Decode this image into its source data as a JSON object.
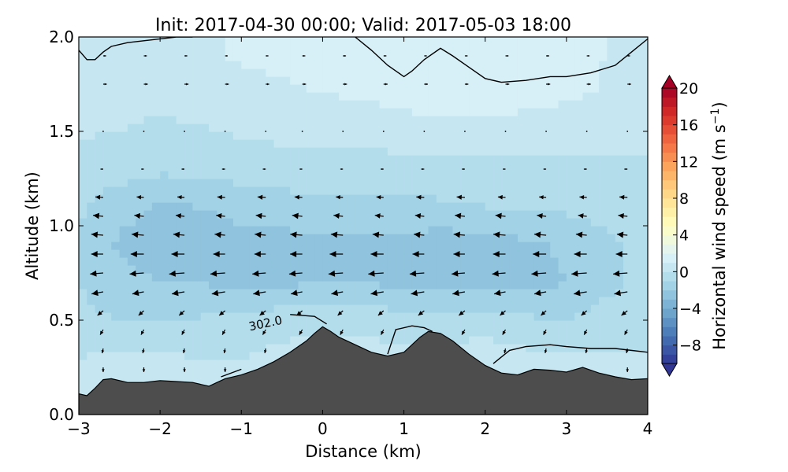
{
  "chart_data": {
    "type": "contour",
    "title": "Init: 2017-04-30 00:00; Valid: 2017-05-03 18:00",
    "xlabel": "Distance (km)",
    "ylabel": "Altitude (km)",
    "xlim": [
      -3,
      4
    ],
    "ylim": [
      0.0,
      2.0
    ],
    "x_ticks": [
      -3,
      -2,
      -1,
      0,
      1,
      2,
      3,
      4
    ],
    "x_tick_labels": [
      "−3",
      "−2",
      "−1",
      "0",
      "1",
      "2",
      "3",
      "4"
    ],
    "y_ticks": [
      0.0,
      0.5,
      1.0,
      1.5,
      2.0
    ],
    "y_tick_labels": [
      "0.0",
      "0.5",
      "1.0",
      "1.5",
      "2.0"
    ],
    "colorbar": {
      "label_main": "Horizontal wind speed (m s",
      "label_sup": "−1",
      "label_end": ")",
      "range": [
        -10,
        20
      ],
      "ticks": [
        -8,
        -4,
        0,
        4,
        8,
        12,
        16,
        20
      ],
      "tick_labels": [
        "−8",
        "−4",
        "0",
        "4",
        "8",
        "12",
        "16",
        "20"
      ],
      "colormap": "RdYlBu_r"
    },
    "terrain": {
      "x": [
        -3.0,
        -2.9,
        -2.8,
        -2.7,
        -2.6,
        -2.4,
        -2.2,
        -2.0,
        -1.8,
        -1.6,
        -1.4,
        -1.3,
        -1.2,
        -1.0,
        -0.8,
        -0.6,
        -0.4,
        -0.2,
        -0.1,
        0.0,
        0.1,
        0.2,
        0.4,
        0.6,
        0.8,
        1.0,
        1.1,
        1.2,
        1.3,
        1.45,
        1.6,
        1.8,
        2.0,
        2.2,
        2.4,
        2.6,
        2.8,
        3.0,
        3.2,
        3.4,
        3.6,
        3.8,
        4.0
      ],
      "altitude": [
        0.11,
        0.1,
        0.14,
        0.185,
        0.19,
        0.17,
        0.17,
        0.18,
        0.175,
        0.17,
        0.15,
        0.17,
        0.19,
        0.21,
        0.24,
        0.28,
        0.33,
        0.39,
        0.43,
        0.465,
        0.44,
        0.41,
        0.37,
        0.33,
        0.31,
        0.33,
        0.37,
        0.41,
        0.44,
        0.43,
        0.39,
        0.32,
        0.26,
        0.22,
        0.21,
        0.24,
        0.235,
        0.225,
        0.25,
        0.22,
        0.2,
        0.185,
        0.19
      ]
    },
    "contour_label": "302.0",
    "isentropes": [
      {
        "x": [
          -1.25,
          -1.0
        ],
        "y": [
          0.2,
          0.24
        ]
      },
      {
        "x": [
          -0.4,
          -0.1,
          0.05
        ],
        "y": [
          0.53,
          0.52,
          0.48
        ]
      },
      {
        "x": [
          0.8,
          0.9,
          1.1,
          1.25,
          1.35
        ],
        "y": [
          0.32,
          0.45,
          0.47,
          0.46,
          0.44
        ]
      },
      {
        "x": [
          2.1,
          2.3,
          2.5,
          2.8,
          3.0,
          3.3,
          3.6,
          4.0
        ],
        "y": [
          0.27,
          0.34,
          0.36,
          0.37,
          0.36,
          0.35,
          0.35,
          0.33
        ]
      },
      {
        "x": [
          -3.0,
          -2.9,
          -2.8,
          -2.7,
          -2.6,
          -2.4,
          -2.2,
          -2.0,
          -1.8,
          -1.6
        ],
        "y": [
          1.93,
          1.88,
          1.88,
          1.92,
          1.95,
          1.97,
          1.98,
          1.99,
          2.0,
          2.0
        ]
      },
      {
        "x": [
          0.9,
          1.0,
          1.1,
          1.25,
          1.45,
          1.6,
          1.8,
          2.0,
          2.2,
          2.5,
          2.8,
          3.0,
          3.3,
          3.6,
          3.8,
          4.0
        ],
        "y": [
          1.82,
          1.79,
          1.82,
          1.88,
          1.94,
          1.9,
          1.84,
          1.78,
          1.76,
          1.77,
          1.79,
          1.79,
          1.81,
          1.85,
          1.92,
          1.99
        ]
      },
      {
        "x": [
          0.4,
          0.6,
          0.8,
          0.9
        ],
        "y": [
          2.0,
          1.93,
          1.85,
          1.82
        ]
      }
    ],
    "wind_vectors": {
      "x_columns": [
        -2.7,
        -2.2,
        -1.7,
        -1.2,
        -0.7,
        -0.25,
        0.25,
        0.75,
        1.25,
        1.75,
        2.25,
        2.75,
        3.25,
        3.75
      ],
      "heights": [
        0.25,
        0.35,
        0.45,
        0.55,
        0.65,
        0.75,
        0.85,
        0.95,
        1.05,
        1.15,
        1.3,
        1.5,
        1.75,
        1.9
      ],
      "u_profile": [
        0.0,
        -0.2,
        -0.6,
        -1.2,
        -2.6,
        -3.0,
        -2.6,
        -2.4,
        -2.0,
        -1.6,
        -0.6,
        0.2,
        0.8,
        0.6
      ],
      "w_profile": [
        -0.45,
        -0.45,
        -0.5,
        -0.45,
        -0.2,
        -0.1,
        0.0,
        0.1,
        0.1,
        0.05,
        0.0,
        0.0,
        0.0,
        0.0
      ]
    },
    "wind_field": {
      "x": [
        -3.0,
        -2.5,
        -2.0,
        -1.5,
        -1.0,
        -0.5,
        0.0,
        0.5,
        1.0,
        1.5,
        2.0,
        2.5,
        3.0,
        3.5,
        4.0
      ],
      "y": [
        0.1,
        0.3,
        0.5,
        0.7,
        0.9,
        1.1,
        1.3,
        1.5,
        1.7,
        1.9,
        2.0
      ],
      "values": [
        [
          0.2,
          0.4,
          0.3,
          0.3,
          0.3,
          0.5,
          0.8,
          0.6,
          0.4,
          0.5,
          0.6,
          0.5,
          0.4,
          0.3,
          0.3
        ],
        [
          0.0,
          0.2,
          0.2,
          0.0,
          0.0,
          0.3,
          0.6,
          0.5,
          0.3,
          0.4,
          0.5,
          0.3,
          0.2,
          0.1,
          0.1
        ],
        [
          -0.8,
          -1.0,
          -1.0,
          -0.9,
          -0.6,
          -0.4,
          -0.3,
          -0.4,
          -0.6,
          -0.6,
          -0.4,
          -0.8,
          -1.0,
          -0.6,
          -0.4
        ],
        [
          -1.0,
          -1.6,
          -2.0,
          -2.0,
          -2.4,
          -2.2,
          -2.0,
          -2.0,
          -2.2,
          -2.4,
          -2.4,
          -2.4,
          -2.0,
          -1.2,
          -0.8
        ],
        [
          -1.2,
          -2.2,
          -2.6,
          -2.6,
          -2.5,
          -2.4,
          -2.4,
          -2.3,
          -2.4,
          -2.6,
          -2.4,
          -2.2,
          -1.8,
          -1.2,
          -0.8
        ],
        [
          -0.8,
          -1.6,
          -2.2,
          -2.0,
          -1.6,
          -1.4,
          -1.3,
          -1.3,
          -1.2,
          -1.2,
          -1.0,
          -1.0,
          -0.8,
          -0.6,
          -0.5
        ],
        [
          -0.4,
          -0.6,
          -0.8,
          -0.8,
          -0.6,
          -0.5,
          -0.5,
          -0.5,
          -0.4,
          -0.3,
          -0.2,
          -0.2,
          -0.1,
          -0.1,
          -0.1
        ],
        [
          0.1,
          0.0,
          -0.2,
          -0.1,
          0.1,
          0.3,
          0.4,
          0.4,
          0.5,
          0.5,
          0.5,
          0.3,
          0.2,
          0.2,
          0.1
        ],
        [
          0.3,
          0.3,
          0.3,
          0.4,
          0.6,
          0.8,
          1.0,
          1.1,
          1.4,
          1.7,
          1.8,
          1.6,
          1.2,
          0.9,
          0.6
        ],
        [
          0.5,
          0.5,
          0.6,
          0.8,
          1.1,
          1.3,
          1.5,
          1.6,
          1.8,
          1.6,
          1.4,
          1.3,
          1.2,
          1.0,
          0.8
        ],
        [
          0.6,
          0.6,
          0.7,
          0.9,
          1.1,
          1.3,
          1.4,
          1.5,
          1.6,
          1.5,
          1.4,
          1.3,
          1.2,
          1.0,
          0.9
        ]
      ]
    }
  }
}
